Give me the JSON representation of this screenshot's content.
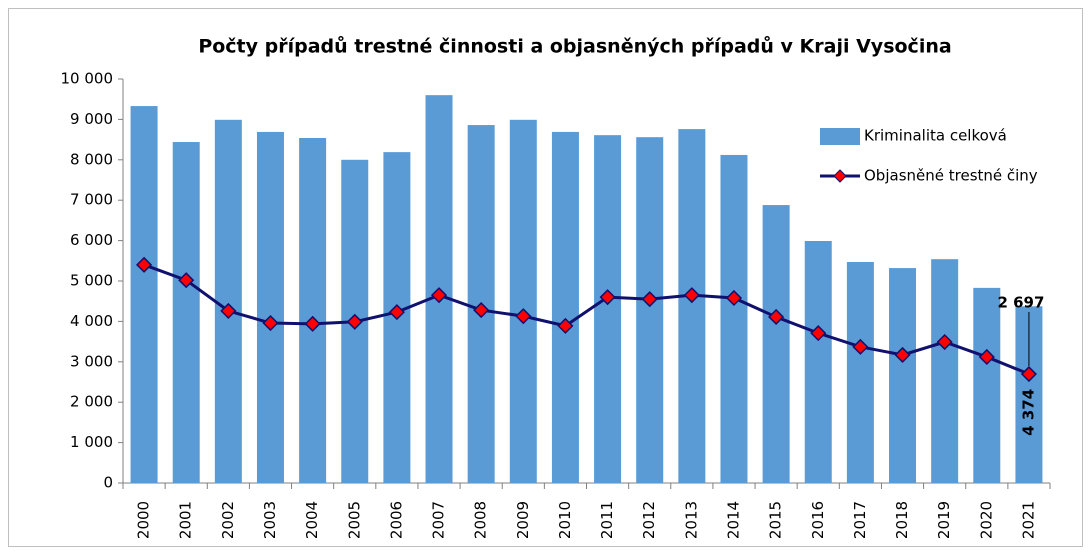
{
  "chart_data": {
    "type": "bar_line",
    "title": "Počty případů trestné činnosti a objasněných případů v Kraji Vysočina",
    "categories": [
      "2000",
      "2001",
      "2002",
      "2003",
      "2004",
      "2005",
      "2006",
      "2007",
      "2008",
      "2009",
      "2010",
      "2011",
      "2012",
      "2013",
      "2014",
      "2015",
      "2016",
      "2017",
      "2018",
      "2019",
      "2020",
      "2021"
    ],
    "series": [
      {
        "name": "Kriminalita celková",
        "type": "bar",
        "color": "#5b9bd5",
        "values": [
          9330,
          8440,
          8990,
          8690,
          8540,
          8000,
          8190,
          9600,
          8860,
          8990,
          8690,
          8610,
          8560,
          8760,
          8120,
          6880,
          5990,
          5470,
          5320,
          5540,
          4830,
          4374
        ],
        "value_labels": [
          null,
          null,
          null,
          null,
          null,
          null,
          null,
          null,
          null,
          null,
          null,
          null,
          null,
          null,
          null,
          null,
          null,
          null,
          null,
          null,
          null,
          "4 374"
        ]
      },
      {
        "name": "Objasněné trestné činy",
        "type": "line",
        "color": "#10106e",
        "marker_color": "#ff0000",
        "values": [
          5400,
          5020,
          4260,
          3960,
          3940,
          3990,
          4230,
          4650,
          4280,
          4130,
          3890,
          4600,
          4550,
          4650,
          4580,
          4110,
          3710,
          3370,
          3170,
          3490,
          3120,
          2697
        ],
        "value_labels": [
          null,
          null,
          null,
          null,
          null,
          null,
          null,
          null,
          null,
          null,
          null,
          null,
          null,
          null,
          null,
          null,
          null,
          null,
          null,
          null,
          null,
          "2 697"
        ]
      }
    ],
    "ylim": [
      0,
      10000
    ],
    "yticks": [
      0,
      {
        "value": 1000,
        "label": "1 000"
      },
      {
        "value": 2000,
        "label": "2 000"
      },
      {
        "value": 3000,
        "label": "3 000"
      },
      {
        "value": 4000,
        "label": "4 000"
      },
      {
        "value": 5000,
        "label": "5 000"
      },
      {
        "value": 6000,
        "label": "6 000"
      },
      {
        "value": 7000,
        "label": "7 000"
      },
      {
        "value": 8000,
        "label": "8 000"
      },
      {
        "value": 9000,
        "label": "9 000"
      },
      {
        "value": 10000,
        "label": "10 000"
      }
    ],
    "grid": false,
    "legend": "upper right"
  }
}
